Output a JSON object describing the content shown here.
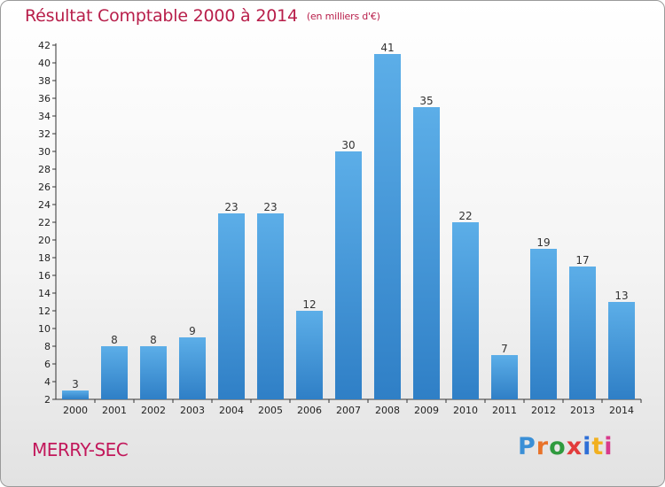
{
  "header": {
    "title": "Résultat Comptable 2000 à 2014",
    "unit": "(en milliers d'€)"
  },
  "footer": {
    "town": "MERRY-SEC",
    "logo_text": "Proxiti",
    "logo_colors": [
      "#3a8fd6",
      "#e8732a",
      "#2f9a3e",
      "#e23b3b",
      "#2f6fd6",
      "#f1b020",
      "#d83a8c"
    ]
  },
  "colors": {
    "bar_top": "#5caee8",
    "bar_bottom": "#2f7fc6",
    "title": "#b81e4a",
    "town": "#c2185b"
  },
  "chart_data": {
    "type": "bar",
    "categories": [
      "2000",
      "2001",
      "2002",
      "2003",
      "2004",
      "2005",
      "2006",
      "2007",
      "2008",
      "2009",
      "2010",
      "2011",
      "2012",
      "2013",
      "2014"
    ],
    "values": [
      3,
      8,
      8,
      9,
      23,
      23,
      12,
      30,
      41,
      35,
      22,
      7,
      19,
      17,
      13
    ],
    "title": "Résultat Comptable 2000 à 2014",
    "ylim": [
      2,
      42
    ],
    "yticks": [
      2,
      4,
      6,
      8,
      10,
      12,
      14,
      16,
      18,
      20,
      22,
      24,
      26,
      28,
      30,
      32,
      34,
      36,
      38,
      40,
      42
    ],
    "grid": false,
    "legend": "none"
  }
}
